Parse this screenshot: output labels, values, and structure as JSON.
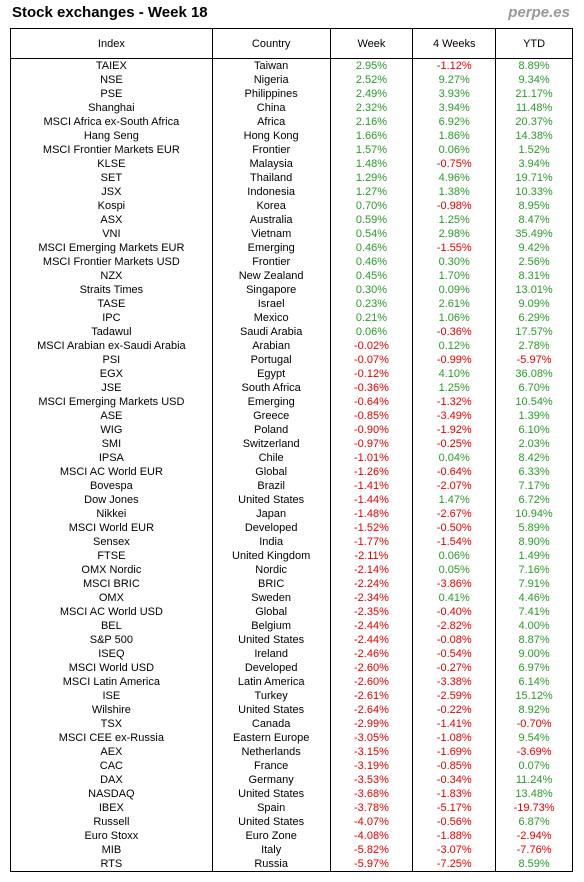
{
  "header": {
    "title": "Stock exchanges - Week 18",
    "source": "perpe.es"
  },
  "table": {
    "columns": [
      "Index",
      "Country",
      "Week",
      "4 Weeks",
      "YTD"
    ],
    "rows": [
      [
        "TAIEX",
        "Taiwan",
        "2.95%",
        "-1.12%",
        "8.89%"
      ],
      [
        "NSE",
        "Nigeria",
        "2.52%",
        "9.27%",
        "9.34%"
      ],
      [
        "PSE",
        "Philippines",
        "2.49%",
        "3.93%",
        "21.17%"
      ],
      [
        "Shanghai",
        "China",
        "2.32%",
        "3.94%",
        "11.48%"
      ],
      [
        "MSCI Africa ex-South Africa",
        "Africa",
        "2.16%",
        "6.92%",
        "20.37%"
      ],
      [
        "Hang Seng",
        "Hong Kong",
        "1.66%",
        "1.86%",
        "14.38%"
      ],
      [
        "MSCI Frontier Markets EUR",
        "Frontier",
        "1.57%",
        "0.06%",
        "1.52%"
      ],
      [
        "KLSE",
        "Malaysia",
        "1.48%",
        "-0.75%",
        "3.94%"
      ],
      [
        "SET",
        "Thailand",
        "1.29%",
        "4.96%",
        "19.71%"
      ],
      [
        "JSX",
        "Indonesia",
        "1.27%",
        "1.38%",
        "10.33%"
      ],
      [
        "Kospi",
        "Korea",
        "0.70%",
        "-0.98%",
        "8.95%"
      ],
      [
        "ASX",
        "Australia",
        "0.59%",
        "1.25%",
        "8.47%"
      ],
      [
        "VNI",
        "Vietnam",
        "0.54%",
        "2.98%",
        "35.49%"
      ],
      [
        "MSCI Emerging Markets EUR",
        "Emerging",
        "0.46%",
        "-1.55%",
        "9.42%"
      ],
      [
        "MSCI Frontier Markets USD",
        "Frontier",
        "0.46%",
        "0.30%",
        "2.56%"
      ],
      [
        "NZX",
        "New Zealand",
        "0.45%",
        "1.70%",
        "8.31%"
      ],
      [
        "Straits Times",
        "Singapore",
        "0.30%",
        "0.09%",
        "13.01%"
      ],
      [
        "TASE",
        "Israel",
        "0.23%",
        "2.61%",
        "9.09%"
      ],
      [
        "IPC",
        "Mexico",
        "0.21%",
        "1.06%",
        "6.29%"
      ],
      [
        "Tadawul",
        "Saudi Arabia",
        "0.06%",
        "-0.36%",
        "17.57%"
      ],
      [
        "MSCI Arabian ex-Saudi Arabia",
        "Arabian",
        "-0.02%",
        "0.12%",
        "2.78%"
      ],
      [
        "PSI",
        "Portugal",
        "-0.07%",
        "-0.99%",
        "-5.97%"
      ],
      [
        "EGX",
        "Egypt",
        "-0.12%",
        "4.10%",
        "36.08%"
      ],
      [
        "JSE",
        "South Africa",
        "-0.36%",
        "1.25%",
        "6.70%"
      ],
      [
        "MSCI Emerging Markets USD",
        "Emerging",
        "-0.64%",
        "-1.32%",
        "10.54%"
      ],
      [
        "ASE",
        "Greece",
        "-0.85%",
        "-3.49%",
        "1.39%"
      ],
      [
        "WIG",
        "Poland",
        "-0.90%",
        "-1.92%",
        "6.10%"
      ],
      [
        "SMI",
        "Switzerland",
        "-0.97%",
        "-0.25%",
        "2.03%"
      ],
      [
        "IPSA",
        "Chile",
        "-1.01%",
        "0.04%",
        "8.42%"
      ],
      [
        "MSCI AC World EUR",
        "Global",
        "-1.26%",
        "-0.64%",
        "6.33%"
      ],
      [
        "Bovespa",
        "Brazil",
        "-1.41%",
        "-2.07%",
        "7.17%"
      ],
      [
        "Dow Jones",
        "United States",
        "-1.44%",
        "1.47%",
        "6.72%"
      ],
      [
        "Nikkei",
        "Japan",
        "-1.48%",
        "-2.67%",
        "10.94%"
      ],
      [
        "MSCI World EUR",
        "Developed",
        "-1.52%",
        "-0.50%",
        "5.89%"
      ],
      [
        "Sensex",
        "India",
        "-1.77%",
        "-1.54%",
        "8.90%"
      ],
      [
        "FTSE",
        "United Kingdom",
        "-2.11%",
        "0.06%",
        "1.49%"
      ],
      [
        "OMX Nordic",
        "Nordic",
        "-2.14%",
        "0.05%",
        "7.16%"
      ],
      [
        "MSCI BRIC",
        "BRIC",
        "-2.24%",
        "-3.86%",
        "7.91%"
      ],
      [
        "OMX",
        "Sweden",
        "-2.34%",
        "0.41%",
        "4.46%"
      ],
      [
        "MSCI AC World USD",
        "Global",
        "-2.35%",
        "-0.40%",
        "7.41%"
      ],
      [
        "BEL",
        "Belgium",
        "-2.44%",
        "-2.82%",
        "4.00%"
      ],
      [
        "S&P 500",
        "United States",
        "-2.44%",
        "-0.08%",
        "8.87%"
      ],
      [
        "ISEQ",
        "Ireland",
        "-2.46%",
        "-0.54%",
        "9.00%"
      ],
      [
        "MSCI World USD",
        "Developed",
        "-2.60%",
        "-0.27%",
        "6.97%"
      ],
      [
        "MSCI Latin America",
        "Latin America",
        "-2.60%",
        "-3.38%",
        "6.14%"
      ],
      [
        "ISE",
        "Turkey",
        "-2.61%",
        "-2.59%",
        "15.12%"
      ],
      [
        "Wilshire",
        "United States",
        "-2.64%",
        "-0.22%",
        "8.92%"
      ],
      [
        "TSX",
        "Canada",
        "-2.99%",
        "-1.41%",
        "-0.70%"
      ],
      [
        "MSCI CEE ex-Russia",
        "Eastern Europe",
        "-3.05%",
        "-1.08%",
        "9.54%"
      ],
      [
        "AEX",
        "Netherlands",
        "-3.15%",
        "-1.69%",
        "-3.69%"
      ],
      [
        "CAC",
        "France",
        "-3.19%",
        "-0.85%",
        "0.07%"
      ],
      [
        "DAX",
        "Germany",
        "-3.53%",
        "-0.34%",
        "11.24%"
      ],
      [
        "NASDAQ",
        "United States",
        "-3.68%",
        "-1.83%",
        "13.48%"
      ],
      [
        "IBEX",
        "Spain",
        "-3.78%",
        "-5.17%",
        "-19.73%"
      ],
      [
        "Russell",
        "United States",
        "-4.07%",
        "-0.56%",
        "6.87%"
      ],
      [
        "Euro Stoxx",
        "Euro Zone",
        "-4.08%",
        "-1.88%",
        "-2.94%"
      ],
      [
        "MIB",
        "Italy",
        "-5.82%",
        "-3.07%",
        "-7.76%"
      ],
      [
        "RTS",
        "Russia",
        "-5.97%",
        "-7.25%",
        "8.59%"
      ]
    ]
  }
}
